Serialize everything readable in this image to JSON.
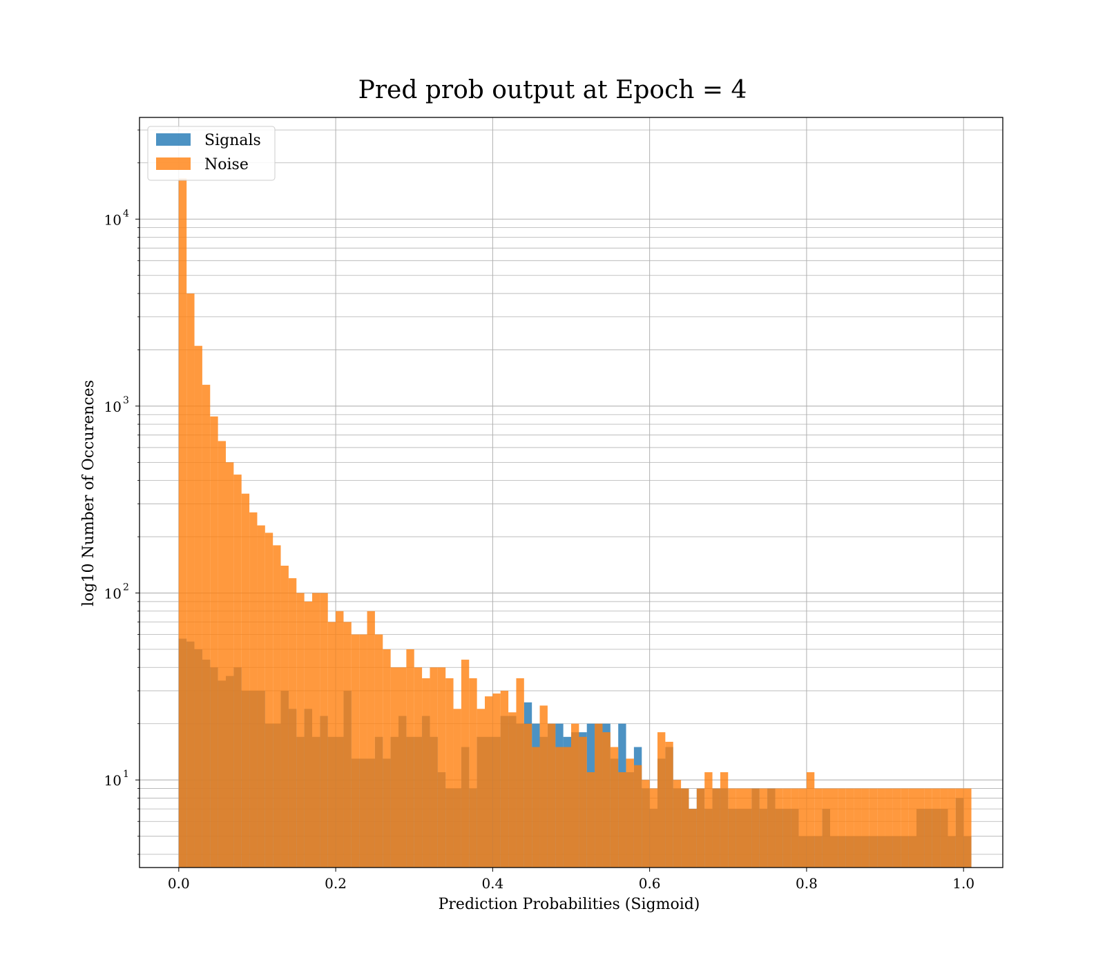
{
  "chart_data": {
    "type": "bar",
    "title": "Pred prob output at Epoch = 4",
    "xlabel": "Prediction Probabilities (Sigmoid)",
    "ylabel": "log10 Number of Occurences",
    "xlim": [
      -0.05,
      1.05
    ],
    "ylim": [
      3.4,
      35000
    ],
    "yscale": "log",
    "grid": true,
    "legend_position": "top-left",
    "x_ticks": [
      0.0,
      0.2,
      0.4,
      0.6,
      0.8,
      1.0
    ],
    "x_tick_labels": [
      "0.0",
      "0.2",
      "0.4",
      "0.6",
      "0.8",
      "1.0"
    ],
    "y_ticks": [
      10,
      100,
      1000,
      10000
    ],
    "y_tick_labels": [
      {
        "base": "10",
        "exp": "1"
      },
      {
        "base": "10",
        "exp": "2"
      },
      {
        "base": "10",
        "exp": "3"
      },
      {
        "base": "10",
        "exp": "4"
      }
    ],
    "series": [
      {
        "name": "Signals",
        "color": "#1f77b4",
        "bin_start": 0.0,
        "bin_width": 0.01,
        "values": [
          57,
          55,
          50,
          44,
          40,
          34,
          36,
          40,
          30,
          30,
          30,
          20,
          20,
          30,
          24,
          17,
          24,
          17,
          22,
          17,
          17,
          30,
          13,
          13,
          13,
          17,
          13,
          17,
          22,
          17,
          17,
          22,
          17,
          11,
          9,
          9,
          15,
          9,
          17,
          17,
          17,
          22,
          22,
          20,
          26,
          20,
          17,
          20,
          20,
          17,
          18,
          18,
          20,
          20,
          20,
          13,
          20,
          11,
          15,
          9,
          7,
          13,
          15,
          9,
          9,
          7,
          9,
          7,
          9,
          9,
          7,
          7,
          7,
          9,
          7,
          9,
          7,
          7,
          7,
          5,
          5,
          5,
          7,
          5,
          5,
          5,
          5,
          5,
          5,
          5,
          5,
          5,
          5,
          5,
          7,
          7,
          7,
          7,
          5,
          8,
          5
        ]
      },
      {
        "name": "Noise",
        "color": "#ff7f0e",
        "bin_start": 0.0,
        "bin_width": 0.01,
        "values": [
          16500,
          4000,
          2100,
          1300,
          880,
          650,
          500,
          430,
          340,
          270,
          230,
          210,
          180,
          140,
          120,
          100,
          90,
          100,
          100,
          70,
          80,
          70,
          60,
          60,
          80,
          60,
          50,
          40,
          40,
          50,
          40,
          35,
          40,
          40,
          35,
          24,
          44,
          35,
          24,
          28,
          29,
          30,
          23,
          35,
          20,
          15,
          25,
          20,
          15,
          15,
          20,
          17,
          11,
          20,
          18,
          15,
          11,
          13,
          12,
          10,
          9,
          18,
          16,
          10,
          9,
          7,
          9,
          11,
          9,
          11,
          9,
          9,
          9,
          9,
          9,
          9,
          9,
          9,
          9,
          9,
          11,
          9,
          9,
          9,
          9,
          9,
          9,
          9,
          9,
          9,
          9,
          9,
          9,
          9,
          9,
          9,
          9,
          9,
          9,
          9,
          9
        ]
      }
    ]
  }
}
